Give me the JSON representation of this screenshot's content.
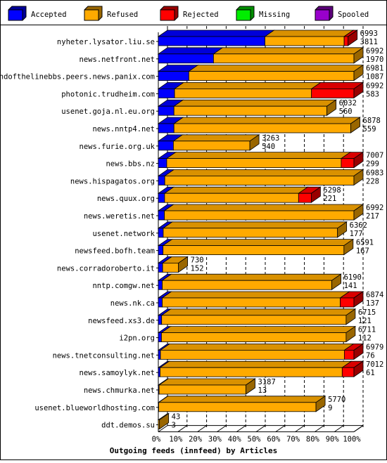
{
  "chart_data": {
    "type": "bar",
    "orientation": "horizontal",
    "stacked": true,
    "title": "Outgoing feeds (innfeed) by Articles",
    "x_axis": {
      "ticks": [
        "0%",
        "10%",
        "20%",
        "30%",
        "40%",
        "50%",
        "60%",
        "70%",
        "80%",
        "90%",
        "100%"
      ],
      "range": [
        0,
        100
      ],
      "unit": "percent"
    },
    "legend": [
      {
        "name": "Accepted",
        "color": "#0000ff"
      },
      {
        "name": "Refused",
        "color": "#ffaa00"
      },
      {
        "name": "Rejected",
        "color": "#ff0000"
      },
      {
        "name": "Missing",
        "color": "#00ee00"
      },
      {
        "name": "Spooled",
        "color": "#9900cc"
      }
    ],
    "legend_position": "top",
    "grid": "vertical dashed",
    "rows": [
      {
        "category": "nyheter.lysator.liu.se",
        "total": "6993",
        "accepted": "3811",
        "pct": {
          "accepted": 54.5,
          "refused": 40.5,
          "rejected": 2.0,
          "spooled": 0.0
        }
      },
      {
        "category": "news.netfront.net",
        "total": "6992",
        "accepted": "1970",
        "pct": {
          "accepted": 28.2,
          "refused": 71.8,
          "rejected": 0.0,
          "spooled": 0.0
        }
      },
      {
        "category": "endofthelinebbs.peers.news.panix.com",
        "total": "6981",
        "accepted": "1087",
        "pct": {
          "accepted": 15.6,
          "refused": 84.4,
          "rejected": 0.0,
          "spooled": 0.0
        }
      },
      {
        "category": "photonic.trudheim.com",
        "total": "6992",
        "accepted": "583",
        "pct": {
          "accepted": 8.3,
          "refused": 70.0,
          "rejected": 21.7,
          "spooled": 0.0
        }
      },
      {
        "category": "usenet.goja.nl.eu.org",
        "total": "6032",
        "accepted": "560",
        "pct": {
          "accepted": 8.0,
          "refused": 78.2,
          "rejected": 0.0,
          "spooled": 0.0
        }
      },
      {
        "category": "news.nntp4.net",
        "total": "6878",
        "accepted": "559",
        "pct": {
          "accepted": 8.0,
          "refused": 90.4,
          "rejected": 0.0,
          "spooled": 0.0
        }
      },
      {
        "category": "news.furie.org.uk",
        "total": "3263",
        "accepted": "540",
        "pct": {
          "accepted": 7.7,
          "refused": 39.1,
          "rejected": 0.0,
          "spooled": 0.0
        }
      },
      {
        "category": "news.bbs.nz",
        "total": "7007",
        "accepted": "299",
        "pct": {
          "accepted": 4.3,
          "refused": 89.2,
          "rejected": 6.5,
          "spooled": 0.0
        }
      },
      {
        "category": "news.hispagatos.org",
        "total": "6983",
        "accepted": "228",
        "pct": {
          "accepted": 3.3,
          "refused": 96.7,
          "rejected": 0.0,
          "spooled": 0.0
        }
      },
      {
        "category": "news.quux.org",
        "total": "5298",
        "accepted": "221",
        "pct": {
          "accepted": 3.2,
          "refused": 68.5,
          "rejected": 6.5,
          "spooled": 0.0
        }
      },
      {
        "category": "news.weretis.net",
        "total": "6992",
        "accepted": "217",
        "pct": {
          "accepted": 3.1,
          "refused": 96.9,
          "rejected": 0.0,
          "spooled": 0.0
        }
      },
      {
        "category": "usenet.network",
        "total": "6362",
        "accepted": "177",
        "pct": {
          "accepted": 2.5,
          "refused": 89.1,
          "rejected": 0.0,
          "spooled": 0.0
        }
      },
      {
        "category": "newsfeed.bofh.team",
        "total": "6591",
        "accepted": "167",
        "pct": {
          "accepted": 2.4,
          "refused": 92.5,
          "rejected": 0.0,
          "spooled": 0.0
        }
      },
      {
        "category": "news.corradoroberto.it",
        "total": "730",
        "accepted": "152",
        "pct": {
          "accepted": 2.2,
          "refused": 8.1,
          "rejected": 0.0,
          "spooled": 0.0
        }
      },
      {
        "category": "nntp.comgw.net",
        "total": "6190",
        "accepted": "141",
        "pct": {
          "accepted": 2.0,
          "refused": 86.7,
          "rejected": 0.0,
          "spooled": 0.0
        }
      },
      {
        "category": "news.nk.ca",
        "total": "6874",
        "accepted": "137",
        "pct": {
          "accepted": 2.0,
          "refused": 91.0,
          "rejected": 7.0,
          "spooled": 0.0
        }
      },
      {
        "category": "newsfeed.xs3.de",
        "total": "6715",
        "accepted": "121",
        "pct": {
          "accepted": 1.7,
          "refused": 94.3,
          "rejected": 0.0,
          "spooled": 0.0
        }
      },
      {
        "category": "i2pn.org",
        "total": "6711",
        "accepted": "112",
        "pct": {
          "accepted": 1.6,
          "refused": 94.4,
          "rejected": 0.0,
          "spooled": 0.0
        }
      },
      {
        "category": "news.tnetconsulting.net",
        "total": "6979",
        "accepted": "76",
        "pct": {
          "accepted": 1.1,
          "refused": 94.0,
          "rejected": 4.9,
          "spooled": 0.0
        }
      },
      {
        "category": "news.samoylyk.net",
        "total": "7012",
        "accepted": "61",
        "pct": {
          "accepted": 0.9,
          "refused": 93.1,
          "rejected": 6.0,
          "spooled": 0.0
        }
      },
      {
        "category": "news.chmurka.net",
        "total": "3187",
        "accepted": "13",
        "pct": {
          "accepted": 0.4,
          "refused": 44.4,
          "rejected": 0.0,
          "spooled": 0.0
        }
      },
      {
        "category": "usenet.blueworldhosting.com",
        "total": "5770",
        "accepted": "9",
        "pct": {
          "accepted": 0.2,
          "refused": 80.4,
          "rejected": 0.0,
          "spooled": 0.0
        }
      },
      {
        "category": "ddt.demos.su",
        "total": "43",
        "accepted": "3",
        "pct": {
          "accepted": 0.0,
          "refused": 0.6,
          "rejected": 0.0,
          "spooled": 0.0
        }
      }
    ]
  }
}
